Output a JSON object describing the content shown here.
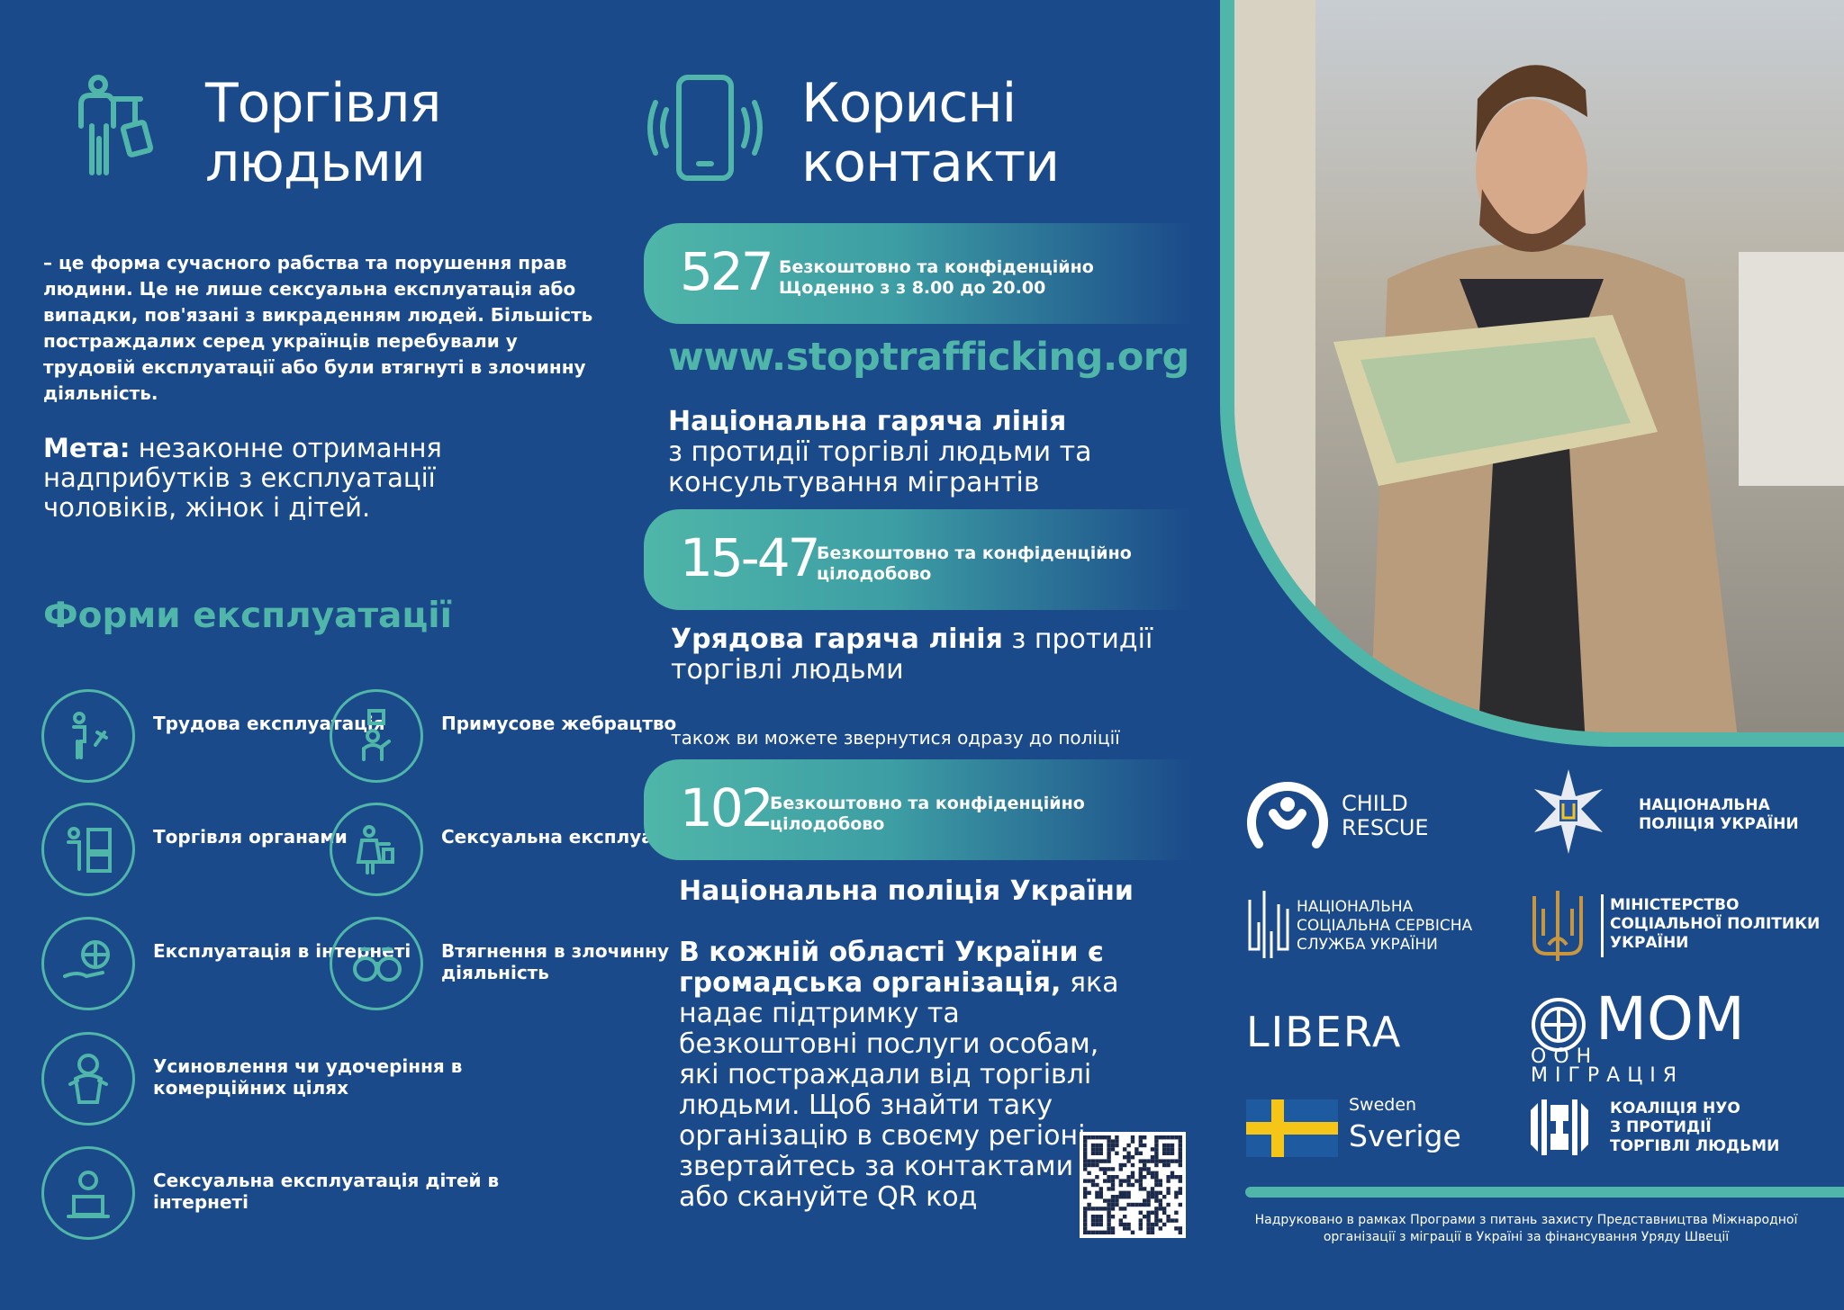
{
  "left": {
    "title_line1": "Торгівля",
    "title_line2": "людьми",
    "intro": "– це форма сучасного рабства та порушення прав людини. Це не лише сексуальна експлуатація або випадки, пов'язані з викраденням людей. Більшість постраждалих серед українців перебували у трудовій експлуатації або були втягнуті в злочинну діяльність.",
    "goal_label": "Мета:",
    "goal_text": " незаконне отримання надприбутків з експлуатації чоловіків, жінок і дітей.",
    "forms_title": "Форми експлуатації",
    "forms": [
      {
        "label": "Трудова експлуатація",
        "icon": "labor-icon"
      },
      {
        "label": "Примусове жебрацтво",
        "icon": "begging-icon"
      },
      {
        "label": "Торгівля органами",
        "icon": "organs-icon"
      },
      {
        "label": "Сексуальна експлуатація",
        "icon": "sexual-exploitation-icon"
      },
      {
        "label": "Експлуатація в інтернеті",
        "icon": "internet-icon"
      },
      {
        "label": "Втягнення в злочинну діяльність",
        "icon": "handcuffs-icon"
      },
      {
        "label": "Усиновлення чи удочеріння в комерційних цілях",
        "icon": "baby-icon"
      },
      {
        "label": "Сексуальна експлуатація дітей в інтернеті",
        "icon": "child-laptop-icon"
      }
    ]
  },
  "middle": {
    "title_line1": "Корисні",
    "title_line2": "контакти",
    "hotline1": {
      "number": "527",
      "line1": "Безкоштовно та конфіденційно",
      "line2": "Щоденно з з 8.00 до 20.00"
    },
    "url": "www.stoptrafficking.org",
    "hotline1_name_bold": "Національна гаряча лінія",
    "hotline1_name_rest": "з протидії торгівлі людьми та консультування мігрантів",
    "hotline2": {
      "number": "15-47",
      "line1": "Безкоштовно та конфіденційно",
      "line2": "цілодобово"
    },
    "hotline2_name_bold": "Урядова гаряча лінія",
    "hotline2_name_rest": " з протидії торгівлі людьми",
    "police_note": "також ви можете звернутися одразу до поліції",
    "hotline3": {
      "number": "102",
      "line1": "Безкоштовно та конфіденційно",
      "line2": "цілодобово"
    },
    "hotline3_name": "Національна поліція України",
    "ngo_bold": "В кожній області України є громадська організація,",
    "ngo_rest": "яка надає підтримку та безкоштовні послуги особам, які постраждали від торгівлі людьми. Щоб знайти таку організацію в своєму регіоні, звертайтесь за контактами або скануйте QR код"
  },
  "logos": {
    "child_rescue_1": "CHILD",
    "child_rescue_2": "RESCUE",
    "police_1": "НАЦІОНАЛЬНА",
    "police_2": "ПОЛІЦІЯ УКРАЇНИ",
    "nsss_1": "НАЦІОНАЛЬНА",
    "nsss_2": "СОЦІАЛЬНА СЕРВІСНА",
    "nsss_3": "СЛУЖБА УКРАЇНИ",
    "ministry_1": "МІНІСТЕРСТВО",
    "ministry_2": "СОЦІАЛЬНОЇ ПОЛІТИКИ",
    "ministry_3": "УКРАЇНИ",
    "libera": "LIBERA",
    "iom_1": "МОМ",
    "iom_2": "ООН МІГРАЦІЯ",
    "sweden_1": "Sweden",
    "sweden_2": "Sverige",
    "coalition_1": "КОАЛІЦІЯ НУО",
    "coalition_2": "З ПРОТИДІЇ",
    "coalition_3": "ТОРГІВЛІ ЛЮДЬМИ"
  },
  "footer": "Надруковано в рамках Програми з питань захисту Представництва Міжнародної організації з міграції в Україні за фінансування Уряду Швеції",
  "colors": {
    "background": "#1b4a8a",
    "accent": "#4fb6a9",
    "sweden_blue": "#1e5aa0",
    "sweden_yellow": "#f5c518"
  }
}
